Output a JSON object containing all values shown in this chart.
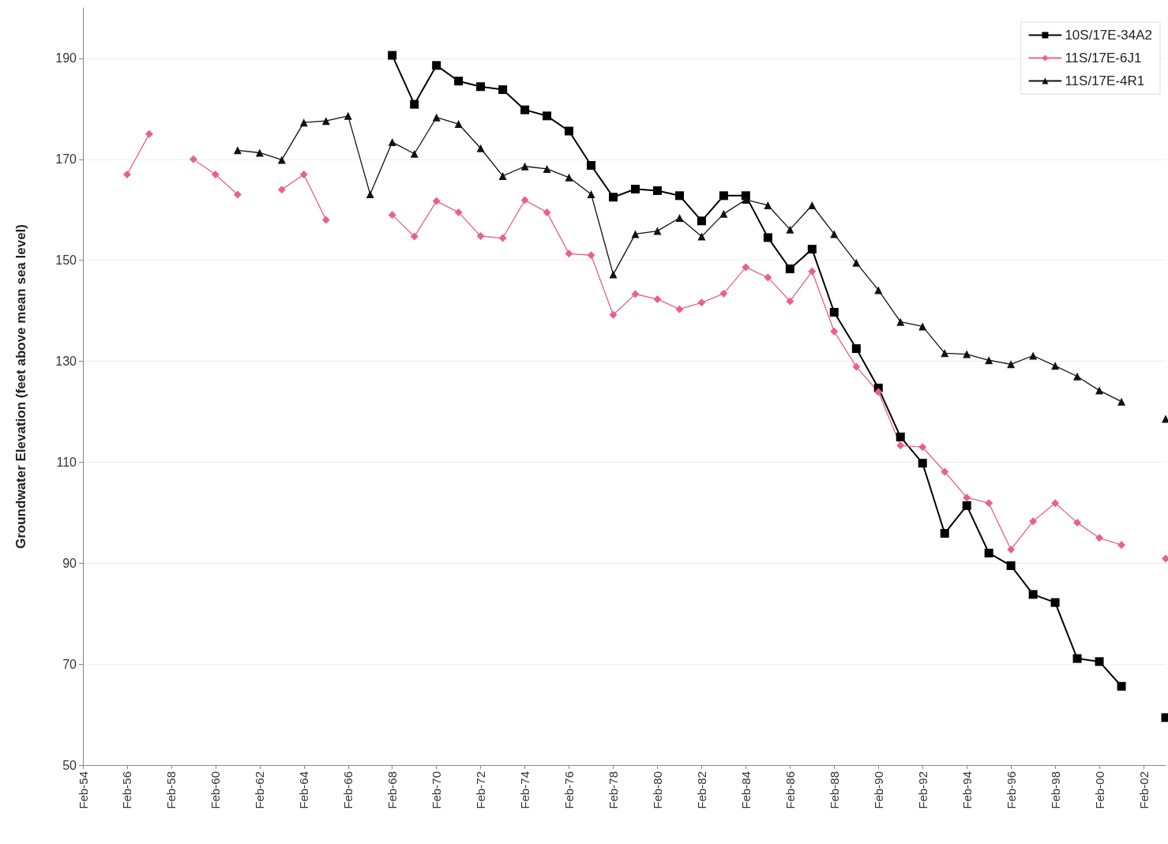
{
  "chart_data": {
    "type": "line",
    "ylabel": "Groundwater Elevation (feet above mean sea level)",
    "x": [
      "1956-02",
      "1957-02",
      "1958-02",
      "1959-02",
      "1960-02",
      "1961-02",
      "1962-02",
      "1963-02",
      "1964-02",
      "1965-02",
      "1966-02",
      "1967-02",
      "1968-02",
      "1969-02",
      "1970-02",
      "1971-02",
      "1972-02",
      "1973-02",
      "1974-02",
      "1975-02",
      "1976-02",
      "1977-02",
      "1978-02",
      "1979-02",
      "1980-02",
      "1981-02",
      "1982-02",
      "1983-02",
      "1984-02",
      "1985-02",
      "1986-02",
      "1987-02",
      "1988-02",
      "1989-02",
      "1990-02",
      "1991-02",
      "1992-02",
      "1993-02",
      "1994-02",
      "1995-02",
      "1996-02",
      "1997-02",
      "1998-02",
      "1999-02",
      "2000-02",
      "2001-02",
      "2002-02",
      "2003-02"
    ],
    "series": [
      {
        "name": "10S/17E-34A2",
        "color": "#000000",
        "marker": "square",
        "values": [
          null,
          null,
          null,
          null,
          null,
          null,
          null,
          null,
          null,
          null,
          null,
          null,
          190.6,
          180.9,
          188.6,
          185.5,
          184.4,
          183.8,
          179.8,
          178.6,
          175.6,
          168.8,
          162.5,
          164.1,
          163.8,
          162.8,
          157.8,
          162.8,
          162.8,
          154.5,
          148.3,
          152.2,
          139.7,
          132.5,
          124.7,
          115,
          109.8,
          95.9,
          101.4,
          92,
          89.5,
          83.8,
          82.2,
          71.1,
          70.5,
          65.6,
          null,
          59.4
        ]
      },
      {
        "name": "11S/17E-6J1",
        "color": "#e8608f",
        "marker": "diamond",
        "values": [
          167,
          175,
          null,
          170,
          167,
          163,
          null,
          164,
          167,
          158,
          null,
          null,
          159,
          154.7,
          161.7,
          159.5,
          154.8,
          154.4,
          161.9,
          159.5,
          151.3,
          151,
          139.2,
          143.3,
          142.3,
          140.3,
          141.6,
          143.4,
          148.6,
          146.6,
          141.9,
          147.8,
          135.9,
          128.9,
          123.9,
          113.3,
          113,
          108.1,
          103,
          101.9,
          92.7,
          98.3,
          101.9,
          98,
          95,
          93.6,
          null,
          90.9
        ]
      },
      {
        "name": "11S/17E-4R1",
        "color": "#111111",
        "marker": "triangle",
        "values": [
          null,
          null,
          null,
          null,
          null,
          171.8,
          171.3,
          169.9,
          177.3,
          177.6,
          178.6,
          163.1,
          173.4,
          171.1,
          178.3,
          177,
          172.2,
          166.7,
          168.6,
          168.1,
          166.4,
          163.1,
          147.2,
          155.2,
          155.8,
          158.4,
          154.7,
          159.2,
          162,
          160.9,
          156.1,
          160.9,
          155.2,
          149.5,
          144.1,
          137.8,
          136.9,
          131.6,
          131.4,
          130.2,
          129.4,
          131.1,
          129.1,
          127,
          124.2,
          122,
          null,
          118.6
        ]
      }
    ],
    "xlim": [
      "1954-02",
      "2003-02"
    ],
    "xticks": [
      {
        "value": "1954-02",
        "label": "Feb-54"
      },
      {
        "value": "1956-02",
        "label": "Feb-56"
      },
      {
        "value": "1958-02",
        "label": "Feb-58"
      },
      {
        "value": "1960-02",
        "label": "Feb-60"
      },
      {
        "value": "1962-02",
        "label": "Feb-62"
      },
      {
        "value": "1964-02",
        "label": "Feb-64"
      },
      {
        "value": "1966-02",
        "label": "Feb-66"
      },
      {
        "value": "1968-02",
        "label": "Feb-68"
      },
      {
        "value": "1970-02",
        "label": "Feb-70"
      },
      {
        "value": "1972-02",
        "label": "Feb-72"
      },
      {
        "value": "1974-02",
        "label": "Feb-74"
      },
      {
        "value": "1976-02",
        "label": "Feb-76"
      },
      {
        "value": "1978-02",
        "label": "Feb-78"
      },
      {
        "value": "1980-02",
        "label": "Feb-80"
      },
      {
        "value": "1982-02",
        "label": "Feb-82"
      },
      {
        "value": "1984-02",
        "label": "Feb-84"
      },
      {
        "value": "1986-02",
        "label": "Feb-86"
      },
      {
        "value": "1988-02",
        "label": "Feb-88"
      },
      {
        "value": "1990-02",
        "label": "Feb-90"
      },
      {
        "value": "1992-02",
        "label": "Feb-92"
      },
      {
        "value": "1994-02",
        "label": "Feb-94"
      },
      {
        "value": "1996-02",
        "label": "Feb-96"
      },
      {
        "value": "1998-02",
        "label": "Feb-98"
      },
      {
        "value": "2000-02",
        "label": "Feb-00"
      },
      {
        "value": "2002-02",
        "label": "Feb-02"
      }
    ],
    "ylim": [
      50,
      200
    ],
    "yticks": [
      50,
      70,
      90,
      110,
      130,
      150,
      170,
      190
    ],
    "grid": "y",
    "legend": "top right",
    "line_style": "solid"
  }
}
